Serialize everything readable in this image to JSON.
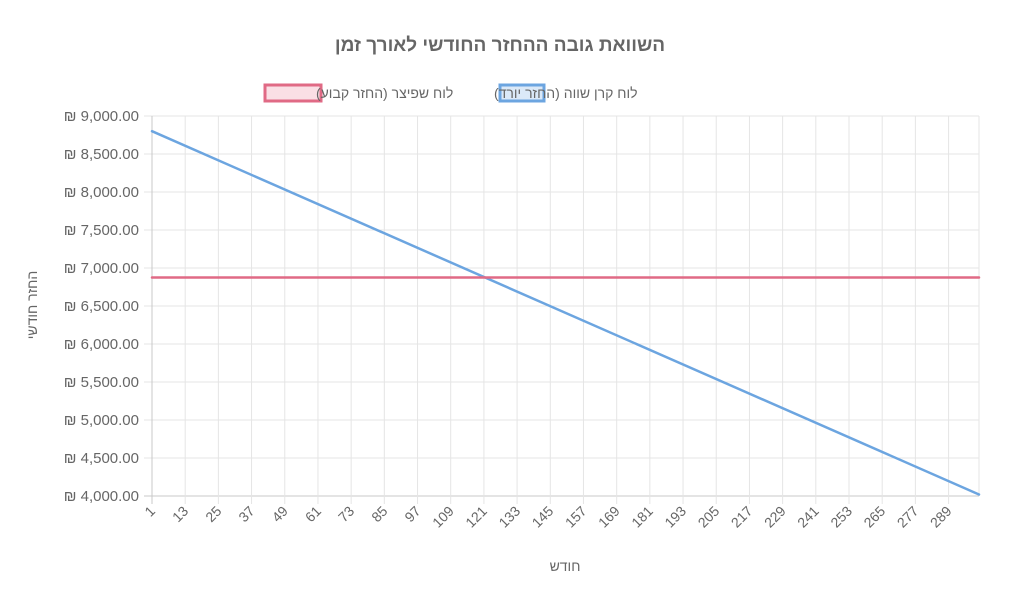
{
  "chart_data": {
    "type": "line",
    "title": "השוואת גובה ההחזר החודשי לאורך זמן",
    "xlabel": "חודש",
    "ylabel": "החזר חודשי",
    "x": {
      "start": 1,
      "end": 300,
      "step": 1
    },
    "x_tick_labels": [
      "1",
      "13",
      "25",
      "37",
      "49",
      "61",
      "73",
      "85",
      "97",
      "109",
      "121",
      "133",
      "145",
      "157",
      "169",
      "181",
      "193",
      "205",
      "217",
      "229",
      "241",
      "253",
      "265",
      "277",
      "289"
    ],
    "ylim": [
      4000,
      9000
    ],
    "y_tick_values": [
      4000,
      4500,
      5000,
      5500,
      6000,
      6500,
      7000,
      7500,
      8000,
      8500,
      9000
    ],
    "y_tick_labels": [
      "₪ 4,000.00",
      "₪ 4,500.00",
      "₪ 5,000.00",
      "₪ 5,500.00",
      "₪ 6,000.00",
      "₪ 6,500.00",
      "₪ 7,000.00",
      "₪ 7,500.00",
      "₪ 8,000.00",
      "₪ 8,500.00",
      "₪ 9,000.00"
    ],
    "grid": true,
    "legend_position": "top",
    "series": [
      {
        "name": "לוח קרן שווה (החזר יורד)",
        "start_value": 8800,
        "end_value": 4020,
        "color": "#6ca5e0",
        "fill": "#dbe9f8"
      },
      {
        "name": "לוח שפיצר (החזר קבוע)",
        "start_value": 6875,
        "end_value": 6875,
        "color": "#e06a85",
        "fill": "#fadfe5"
      }
    ]
  }
}
